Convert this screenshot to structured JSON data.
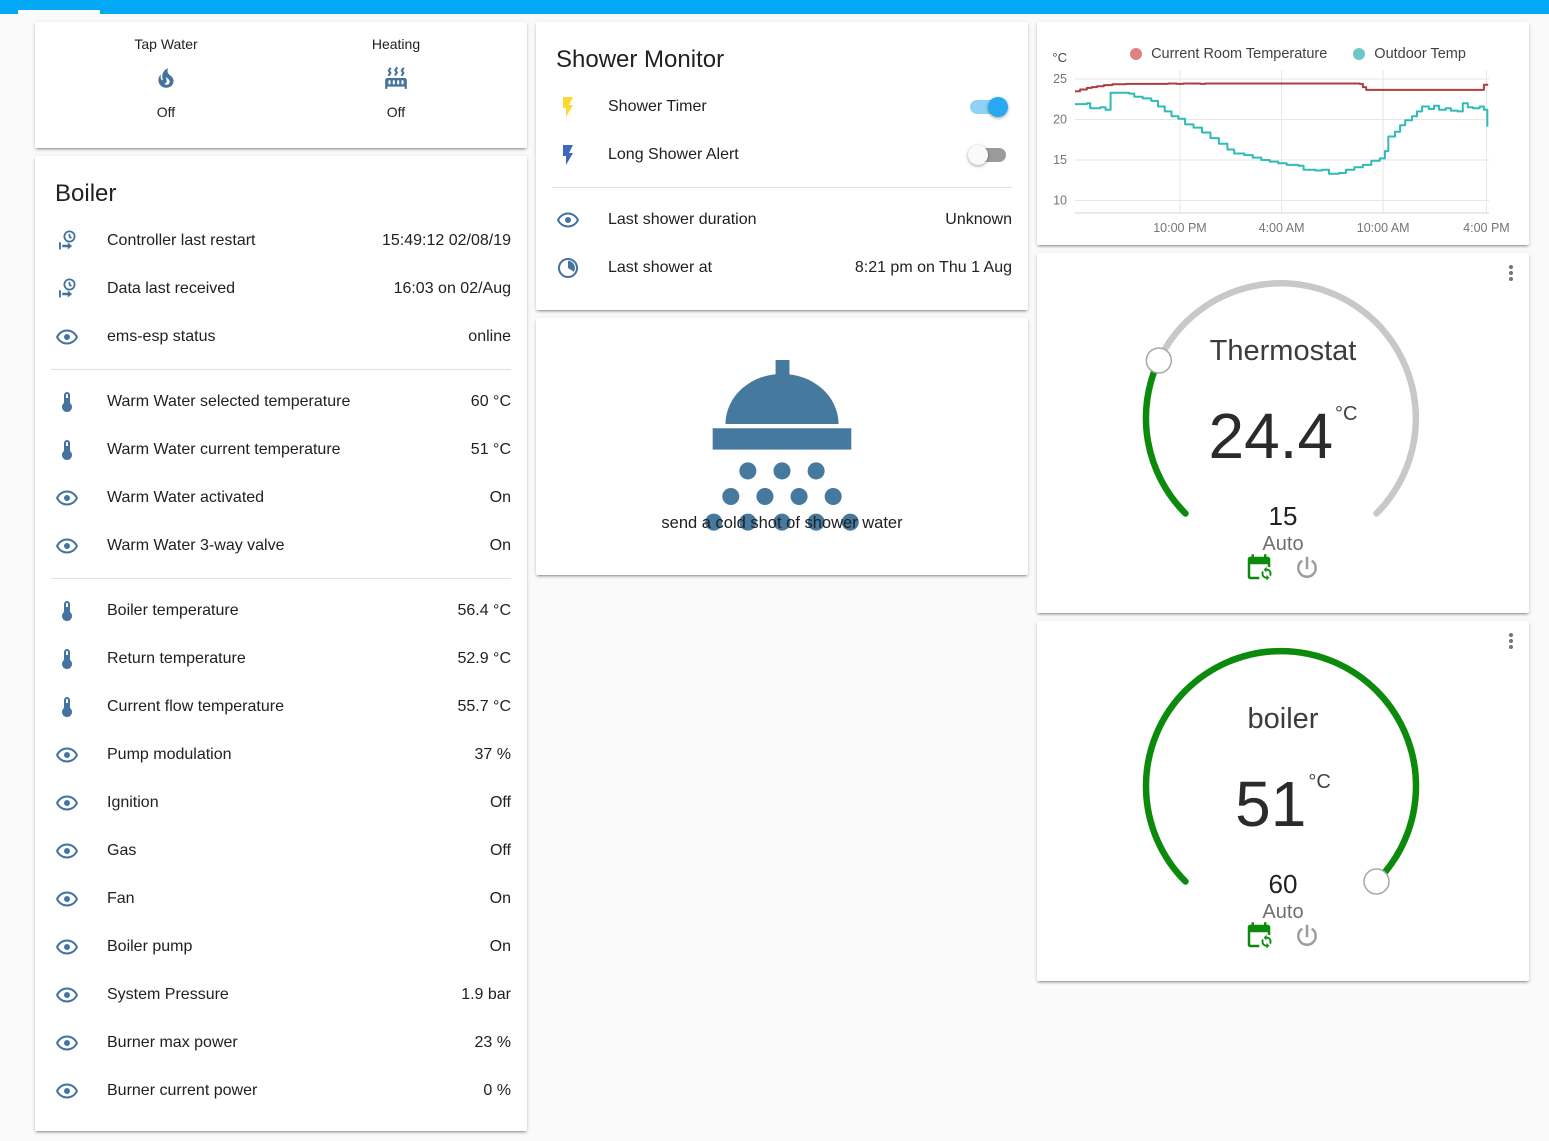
{
  "app_bar": {
    "accent_color": "#03a9f4"
  },
  "status_card": {
    "items": [
      {
        "name": "Tap Water",
        "icon": "fire-icon",
        "state": "Off"
      },
      {
        "name": "Heating",
        "icon": "radiator-icon",
        "state": "Off"
      }
    ]
  },
  "boiler_card": {
    "title": "Boiler",
    "sections": [
      {
        "rows": [
          {
            "icon": "clock-start-icon",
            "label": "Controller last restart",
            "value": "15:49:12 02/08/19"
          },
          {
            "icon": "clock-start-icon",
            "label": "Data last received",
            "value": "16:03 on 02/Aug"
          },
          {
            "icon": "eye-icon",
            "label": "ems-esp status",
            "value": "online"
          }
        ]
      },
      {
        "rows": [
          {
            "icon": "thermometer-icon",
            "label": "Warm Water selected temperature",
            "value": "60 °C"
          },
          {
            "icon": "thermometer-icon",
            "label": "Warm Water current temperature",
            "value": "51 °C"
          },
          {
            "icon": "eye-icon",
            "label": "Warm Water activated",
            "value": "On"
          },
          {
            "icon": "eye-icon",
            "label": "Warm Water 3-way valve",
            "value": "On"
          }
        ]
      },
      {
        "rows": [
          {
            "icon": "thermometer-icon",
            "label": "Boiler temperature",
            "value": "56.4 °C"
          },
          {
            "icon": "thermometer-icon",
            "label": "Return temperature",
            "value": "52.9 °C"
          },
          {
            "icon": "thermometer-icon",
            "label": "Current flow temperature",
            "value": "55.7 °C"
          },
          {
            "icon": "eye-icon",
            "label": "Pump modulation",
            "value": "37 %"
          },
          {
            "icon": "eye-icon",
            "label": "Ignition",
            "value": "Off"
          },
          {
            "icon": "eye-icon",
            "label": "Gas",
            "value": "Off"
          },
          {
            "icon": "eye-icon",
            "label": "Fan",
            "value": "On"
          },
          {
            "icon": "eye-icon",
            "label": "Boiler pump",
            "value": "On"
          },
          {
            "icon": "eye-icon",
            "label": "System Pressure",
            "value": "1.9 bar"
          },
          {
            "icon": "eye-icon",
            "label": "Burner max power",
            "value": "23 %"
          },
          {
            "icon": "eye-icon",
            "label": "Burner current power",
            "value": "0 %"
          }
        ]
      }
    ]
  },
  "shower_monitor_card": {
    "title": "Shower Monitor",
    "toggles": [
      {
        "icon": "flash-icon",
        "icon_color": "yellow",
        "label": "Shower Timer",
        "state": "on"
      },
      {
        "icon": "flash-icon",
        "icon_color": "blue",
        "label": "Long Shower Alert",
        "state": "off"
      }
    ],
    "rows": [
      {
        "icon": "eye-icon",
        "label": "Last shower duration",
        "value": "Unknown"
      },
      {
        "icon": "clock-sector-icon",
        "label": "Last shower at",
        "value": "8:21 pm on Thu 1 Aug"
      }
    ]
  },
  "shower_button_card": {
    "icon": "shower-head-icon",
    "label": "send a cold shot of shower water"
  },
  "chart_data": {
    "type": "line",
    "unit": "°C",
    "ylim": [
      8.5,
      26
    ],
    "yticks": [
      10,
      15,
      20,
      25
    ],
    "xlim": [
      0,
      24.45
    ],
    "xticks": [
      {
        "t": 6.2,
        "label": "10:00 PM"
      },
      {
        "t": 12.2,
        "label": "4:00 AM"
      },
      {
        "t": 18.2,
        "label": "10:00 AM"
      },
      {
        "t": 24.3,
        "label": "4:00 PM"
      }
    ],
    "grid": true,
    "legend_position": "top",
    "series": [
      {
        "name": "Current Room Temperature",
        "color": "#ae3e3e",
        "legend_color": "#de8287",
        "points": [
          [
            0,
            23.5
          ],
          [
            0.3,
            23.7
          ],
          [
            0.7,
            23.9
          ],
          [
            1.0,
            24.0
          ],
          [
            1.3,
            24.1
          ],
          [
            1.7,
            24.25
          ],
          [
            2.2,
            24.35
          ],
          [
            3.0,
            24.4
          ],
          [
            5.2,
            24.4
          ],
          [
            5.5,
            24.45
          ],
          [
            6.0,
            24.4
          ],
          [
            6.4,
            24.45
          ],
          [
            7.4,
            24.4
          ],
          [
            7.7,
            24.45
          ],
          [
            16.5,
            24.45
          ],
          [
            16.8,
            24.4
          ],
          [
            17.0,
            24.0
          ],
          [
            17.2,
            23.65
          ],
          [
            24.05,
            23.65
          ],
          [
            24.15,
            24.3
          ],
          [
            24.4,
            24.3
          ]
        ]
      },
      {
        "name": "Outdoor Temp",
        "color": "#2ebcb9",
        "legend_color": "#6cc7c5",
        "points": [
          [
            0,
            21.9
          ],
          [
            0.7,
            22.0
          ],
          [
            0.9,
            21.4
          ],
          [
            1.5,
            21.5
          ],
          [
            1.8,
            21.2
          ],
          [
            2.1,
            23.3
          ],
          [
            3.2,
            23.2
          ],
          [
            3.5,
            22.8
          ],
          [
            4.0,
            22.6
          ],
          [
            4.5,
            22.3
          ],
          [
            4.9,
            21.6
          ],
          [
            5.3,
            21.0
          ],
          [
            5.7,
            20.4
          ],
          [
            6.1,
            20.1
          ],
          [
            6.5,
            19.4
          ],
          [
            7.0,
            19.0
          ],
          [
            7.5,
            18.4
          ],
          [
            8.0,
            17.7
          ],
          [
            8.5,
            17.0
          ],
          [
            9.0,
            16.3
          ],
          [
            9.4,
            15.8
          ],
          [
            10.0,
            15.6
          ],
          [
            10.5,
            15.3
          ],
          [
            11.0,
            15.0
          ],
          [
            11.5,
            14.8
          ],
          [
            12.0,
            14.6
          ],
          [
            12.5,
            14.4
          ],
          [
            13.2,
            14.3
          ],
          [
            13.5,
            13.8
          ],
          [
            14.2,
            13.7
          ],
          [
            14.6,
            13.8
          ],
          [
            15.0,
            13.3
          ],
          [
            15.6,
            13.4
          ],
          [
            16.0,
            13.8
          ],
          [
            16.5,
            14.1
          ],
          [
            17.0,
            14.4
          ],
          [
            17.5,
            14.9
          ],
          [
            18.0,
            15.2
          ],
          [
            18.3,
            16.1
          ],
          [
            18.5,
            17.9
          ],
          [
            18.9,
            18.5
          ],
          [
            19.2,
            19.3
          ],
          [
            19.5,
            19.9
          ],
          [
            19.9,
            20.4
          ],
          [
            20.2,
            21.0
          ],
          [
            20.5,
            21.6
          ],
          [
            20.9,
            21.3
          ],
          [
            21.2,
            21.7
          ],
          [
            21.5,
            21.2
          ],
          [
            21.9,
            21.4
          ],
          [
            22.2,
            21.1
          ],
          [
            22.6,
            21.0
          ],
          [
            22.9,
            22.0
          ],
          [
            23.2,
            21.5
          ],
          [
            23.5,
            21.4
          ],
          [
            23.9,
            21.6
          ],
          [
            24.15,
            21.2
          ],
          [
            24.35,
            19.1
          ]
        ]
      }
    ]
  },
  "climate_cards": [
    {
      "title": "Thermostat",
      "current": "24.4",
      "unit": "°C",
      "target": "15",
      "mode": "Auto",
      "arc_fraction": 0.26,
      "arc_color": "#0c8a0c",
      "track_color": "#c8c8c8"
    },
    {
      "title": "boiler",
      "current": "51",
      "unit": "°C",
      "target": "60",
      "mode": "Auto",
      "arc_fraction": 1.0,
      "arc_color": "#0c8a0c",
      "track_color": "#c8c8c8"
    }
  ]
}
